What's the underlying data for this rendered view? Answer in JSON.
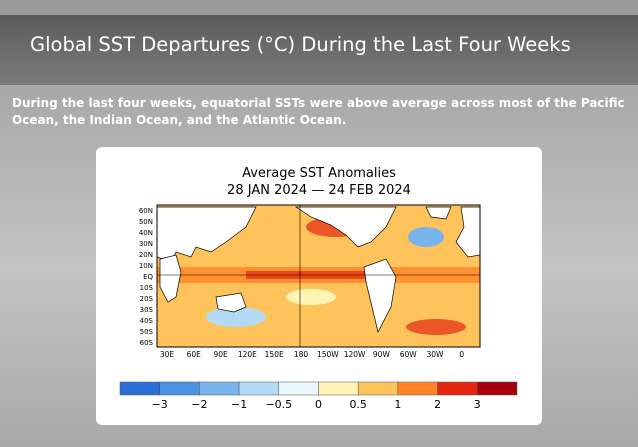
{
  "header": {
    "title": "Global SST Departures (°C) During the Last Four Weeks"
  },
  "summary": "During the last four weeks, equatorial SSTs were above average across most of the Pacific Ocean, the Indian Ocean, and the Atlantic Ocean.",
  "figure": {
    "title": "Average SST Anomalies",
    "subtitle": "28 JAN 2024 — 24 FEB 2024",
    "lat_labels": [
      "60N",
      "50N",
      "40N",
      "30N",
      "20N",
      "10N",
      "EQ",
      "10S",
      "20S",
      "30S",
      "40S",
      "50S",
      "60S"
    ],
    "lon_labels": [
      "30E",
      "60E",
      "90E",
      "120E",
      "150E",
      "180",
      "150W",
      "120W",
      "90W",
      "60W",
      "30W",
      "0"
    ],
    "colorbar": {
      "colors": [
        "#2a6fd6",
        "#4a93e4",
        "#78b4ec",
        "#b4daf6",
        "#eaf7fc",
        "#fff4b4",
        "#ffc35c",
        "#ff8426",
        "#e4260e",
        "#a8000c"
      ],
      "labels": [
        "−3",
        "−2",
        "−1",
        "−0.5",
        "0",
        "0.5",
        "1",
        "2",
        "3"
      ]
    }
  }
}
